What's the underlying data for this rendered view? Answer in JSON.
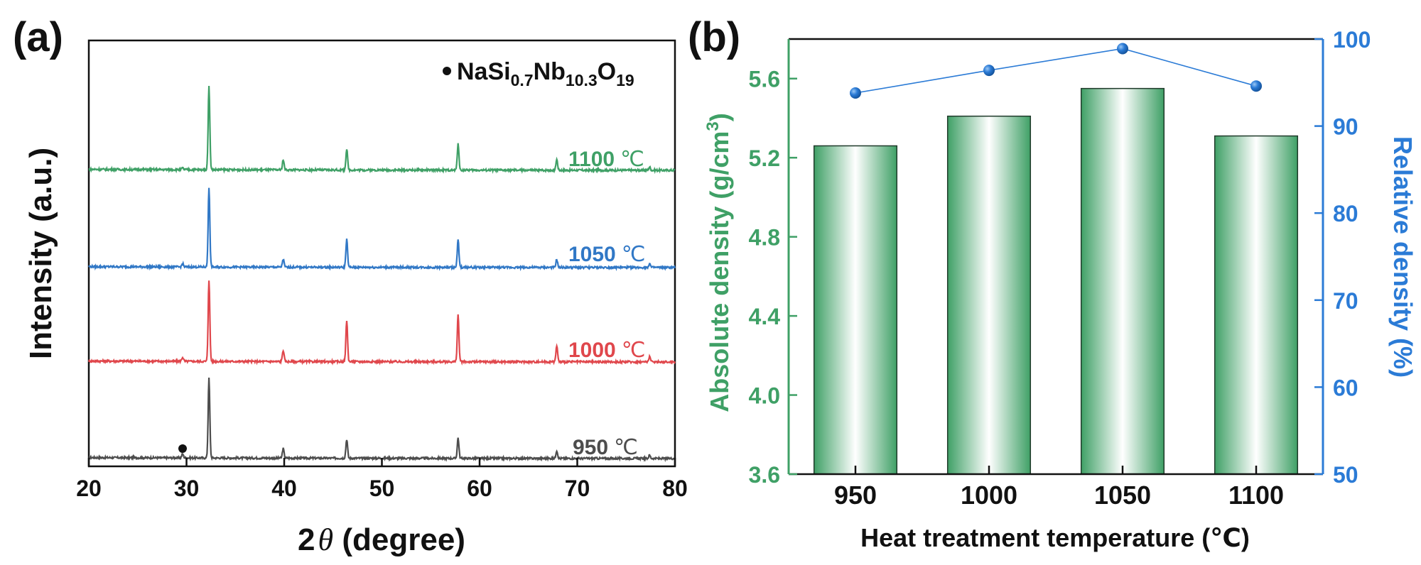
{
  "chart_data": [
    {
      "panel": "(a)",
      "type": "line",
      "title": "",
      "xlabel_prefix": "2",
      "xlabel_symbol": "θ",
      "xlabel_rest": " (degree)",
      "ylabel": "Intensity (a.u.)",
      "xlim": [
        20,
        80
      ],
      "xticks": [
        20,
        30,
        40,
        50,
        60,
        70,
        80
      ],
      "legend": {
        "marker": "•",
        "main": "NaSi",
        "sub1": "0.7",
        "mid": "Nb",
        "sub2": "10.3",
        "tail": "O",
        "sub3": "19"
      },
      "marker_2theta": 29.6,
      "peaks_2theta": [
        32.3,
        39.9,
        46.4,
        57.8,
        67.9,
        77.4
      ],
      "series": [
        {
          "name": "950 ℃",
          "label_num": "950",
          "label_unit": "℃",
          "color": "#4d4d4d",
          "peak_heights": [
            1.0,
            0.12,
            0.24,
            0.26,
            0.1,
            0.04
          ],
          "minor": 0.05
        },
        {
          "name": "1000 ℃",
          "label_num": "1000",
          "label_unit": "℃",
          "color": "#e0474c",
          "peak_heights": [
            1.0,
            0.14,
            0.5,
            0.58,
            0.2,
            0.07
          ],
          "minor": 0.05
        },
        {
          "name": "1050 ℃",
          "label_num": "1050",
          "label_unit": "℃",
          "color": "#3178c6",
          "peak_heights": [
            1.0,
            0.1,
            0.35,
            0.35,
            0.1,
            0.05
          ],
          "minor": 0.04
        },
        {
          "name": "1100 ℃",
          "label_num": "1100",
          "label_unit": "℃",
          "color": "#3fa066",
          "peak_heights": [
            1.0,
            0.12,
            0.25,
            0.32,
            0.13,
            0.04
          ],
          "minor": 0.02
        }
      ]
    },
    {
      "panel": "(b)",
      "type": "bar",
      "categories": [
        "950",
        "1000",
        "1050",
        "1100"
      ],
      "xlabel": "Heat treatment temperature (℃)",
      "ylabel_left": "Absolute density (g/cm",
      "ylabel_left_sup": "3",
      "ylabel_left_end": ")",
      "ylabel_right": "Relative density (%)",
      "ylim_left": [
        3.6,
        5.8
      ],
      "yticks_left": [
        3.6,
        4.0,
        4.4,
        4.8,
        5.2,
        5.6
      ],
      "ylim_right": [
        50,
        100
      ],
      "yticks_right": [
        50,
        60,
        70,
        80,
        90,
        100
      ],
      "series": [
        {
          "name": "Absolute density",
          "axis": "left",
          "type": "bar",
          "color": "#3fa066",
          "values": [
            5.26,
            5.41,
            5.55,
            5.31
          ]
        },
        {
          "name": "Relative density",
          "axis": "right",
          "type": "line",
          "color": "#2b7bd6",
          "values": [
            93.8,
            96.4,
            98.9,
            94.6
          ]
        }
      ]
    }
  ]
}
